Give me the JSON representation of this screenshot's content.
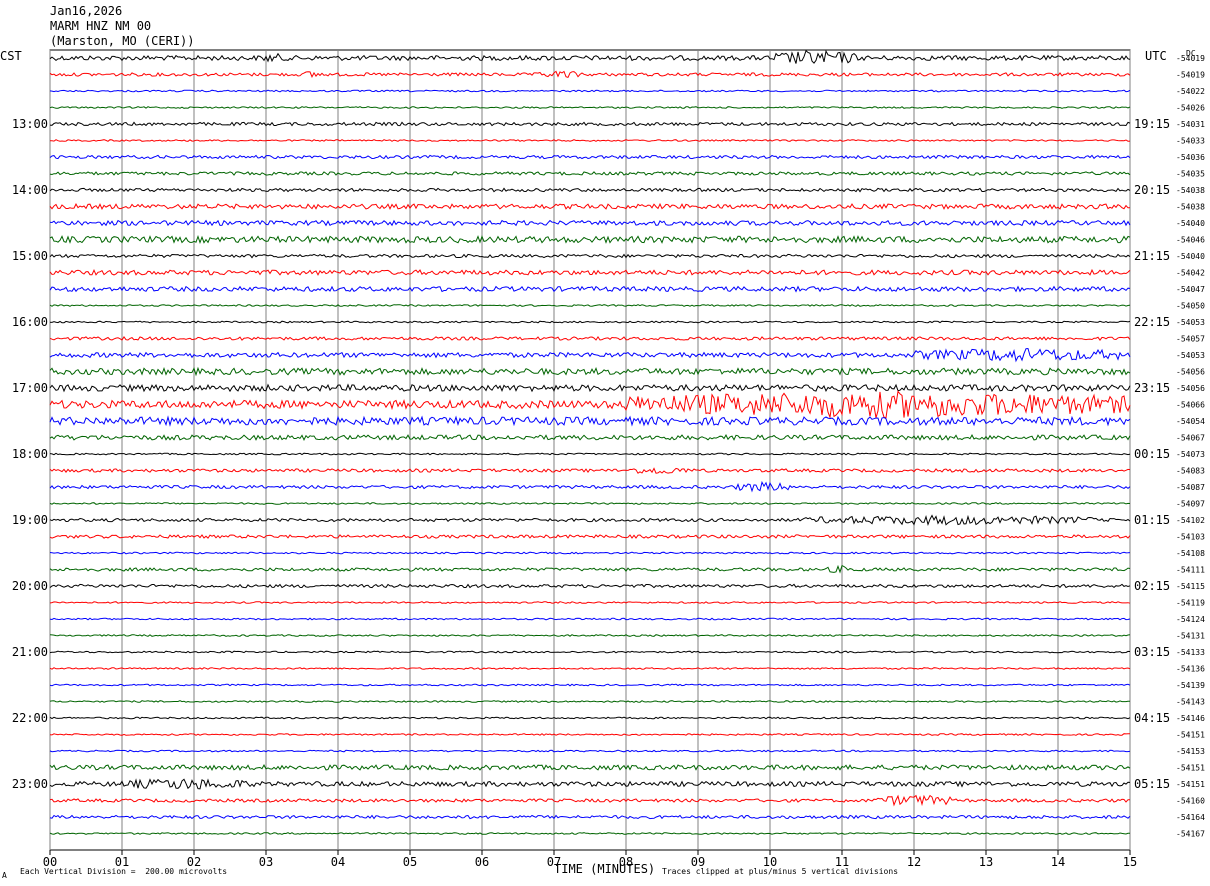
{
  "header": {
    "date": "Jan16,2026",
    "station": "MARM HNZ NM 00",
    "location": "(Marston, MO (CERI))"
  },
  "left_timezone": "CST",
  "right_timezone": "UTC",
  "dc_label": "DC",
  "footer": {
    "scale_note": "Each Vertical Division =  200.00 microvolts",
    "clip_note": "Traces clipped at plus/minus 5 vertical divisions",
    "corner_mark": "A"
  },
  "colors": {
    "black": "#000000",
    "red": "#ff0000",
    "blue": "#0000ff",
    "green": "#006400",
    "grid": "#808080"
  },
  "chart_data": {
    "type": "line",
    "xlabel": "TIME (MINUTES)",
    "xlim": [
      0,
      15
    ],
    "x_ticks": [
      "00",
      "01",
      "02",
      "03",
      "04",
      "05",
      "06",
      "07",
      "08",
      "09",
      "10",
      "11",
      "12",
      "13",
      "14",
      "15"
    ],
    "trace_colors": [
      "black",
      "red",
      "blue",
      "green"
    ],
    "left_hour_labels": [
      null,
      null,
      null,
      null,
      "13:00",
      null,
      null,
      null,
      "14:00",
      null,
      null,
      null,
      "15:00",
      null,
      null,
      null,
      "16:00",
      null,
      null,
      null,
      "17:00",
      null,
      null,
      null,
      "18:00",
      null,
      null,
      null,
      "19:00",
      null,
      null,
      null,
      "20:00",
      null,
      null,
      null,
      "21:00",
      null,
      null,
      null,
      "22:00",
      null,
      null,
      null,
      "23:00",
      null,
      null,
      null
    ],
    "right_hour_labels": [
      null,
      null,
      null,
      null,
      "19:15",
      null,
      null,
      null,
      "20:15",
      null,
      null,
      null,
      "21:15",
      null,
      null,
      null,
      "22:15",
      null,
      null,
      null,
      "23:15",
      null,
      null,
      null,
      "00:15",
      null,
      null,
      null,
      "01:15",
      null,
      null,
      null,
      "02:15",
      null,
      null,
      null,
      "03:15",
      null,
      null,
      null,
      "04:15",
      null,
      null,
      null,
      "05:15",
      null,
      null,
      null
    ],
    "dc_offsets": [
      "-54019",
      "-54019",
      "-54022",
      "-54026",
      "-54031",
      "-54033",
      "-54036",
      "-54035",
      "-54038",
      "-54038",
      "-54040",
      "-54046",
      "-54040",
      "-54042",
      "-54047",
      "-54050",
      "-54053",
      "-54057",
      "-54053",
      "-54056",
      "-54056",
      "-54066",
      "-54054",
      "-54067",
      "-54073",
      "-54083",
      "-54087",
      "-54097",
      "-54102",
      "-54103",
      "-54108",
      "-54111",
      "-54115",
      "-54119",
      "-54124",
      "-54131",
      "-54133",
      "-54136",
      "-54139",
      "-54143",
      "-54146",
      "-54151",
      "-54153",
      "-54151",
      "-54151",
      "-54160",
      "-54164",
      "-54167"
    ],
    "trace_activity": [
      3,
      2,
      1,
      1,
      2,
      1,
      2,
      2,
      2,
      3,
      3,
      4,
      2,
      3,
      3,
      1,
      1,
      2,
      3,
      4,
      4,
      5,
      5,
      3,
      1,
      2,
      2,
      1,
      2,
      2,
      1,
      2,
      2,
      1,
      1,
      1,
      1,
      1,
      1,
      1,
      1,
      1,
      1,
      3,
      3,
      2,
      2,
      1
    ],
    "events": [
      {
        "trace": 0,
        "start": 10.0,
        "end": 11.2,
        "amp": 8
      },
      {
        "trace": 0,
        "start": 2.9,
        "end": 3.3,
        "amp": 5
      },
      {
        "trace": 1,
        "start": 6.8,
        "end": 7.4,
        "amp": 4
      },
      {
        "trace": 1,
        "start": 3.5,
        "end": 3.8,
        "amp": 4
      },
      {
        "trace": 18,
        "start": 12.0,
        "end": 15.0,
        "amp": 7
      },
      {
        "trace": 21,
        "start": 8.0,
        "end": 15.0,
        "amp": 14
      },
      {
        "trace": 25,
        "start": 8.0,
        "end": 8.9,
        "amp": 4
      },
      {
        "trace": 26,
        "start": 9.5,
        "end": 10.3,
        "amp": 5
      },
      {
        "trace": 28,
        "start": 10.5,
        "end": 14.5,
        "amp": 5
      },
      {
        "trace": 31,
        "start": 10.8,
        "end": 11.2,
        "amp": 4
      },
      {
        "trace": 44,
        "start": 1.0,
        "end": 2.8,
        "amp": 6
      },
      {
        "trace": 45,
        "start": 11.5,
        "end": 12.5,
        "amp": 6
      }
    ]
  }
}
